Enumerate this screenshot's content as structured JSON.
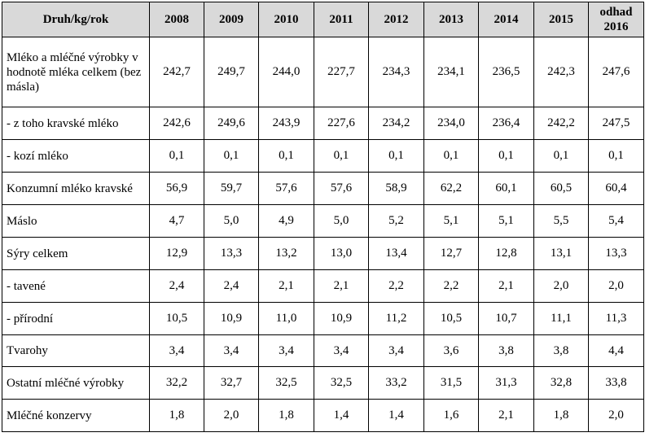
{
  "table": {
    "header_label": "Druh/kg/rok",
    "years": [
      "2008",
      "2009",
      "2010",
      "2011",
      "2012",
      "2013",
      "2014",
      "2015"
    ],
    "estimate_line1": "odhad",
    "estimate_line2": "2016",
    "rows": [
      {
        "label": "Mléko a mléčné výrobky v hodnotě mléka celkem (bez másla)",
        "values": [
          "242,7",
          "249,7",
          "244,0",
          "227,7",
          "234,3",
          "234,1",
          "236,5",
          "242,3",
          "247,6"
        ]
      },
      {
        "label": "- z toho kravské mléko",
        "values": [
          "242,6",
          "249,6",
          "243,9",
          "227,6",
          "234,2",
          "234,0",
          "236,4",
          "242,2",
          "247,5"
        ]
      },
      {
        "label": "- kozí mléko",
        "values": [
          "0,1",
          "0,1",
          "0,1",
          "0,1",
          "0,1",
          "0,1",
          "0,1",
          "0,1",
          "0,1"
        ]
      },
      {
        "label": "Konzumní mléko kravské",
        "values": [
          "56,9",
          "59,7",
          "57,6",
          "57,6",
          "58,9",
          "62,2",
          "60,1",
          "60,5",
          "60,4"
        ]
      },
      {
        "label": "Máslo",
        "values": [
          "4,7",
          "5,0",
          "4,9",
          "5,0",
          "5,2",
          "5,1",
          "5,1",
          "5,5",
          "5,4"
        ]
      },
      {
        "label": "Sýry celkem",
        "values": [
          "12,9",
          "13,3",
          "13,2",
          "13,0",
          "13,4",
          "12,7",
          "12,8",
          "13,1",
          "13,3"
        ]
      },
      {
        "label": "- tavené",
        "values": [
          "2,4",
          "2,4",
          "2,1",
          "2,1",
          "2,2",
          "2,2",
          "2,1",
          "2,0",
          "2,0"
        ]
      },
      {
        "label": "- přírodní",
        "values": [
          "10,5",
          "10,9",
          "11,0",
          "10,9",
          "11,2",
          "10,5",
          "10,7",
          "11,1",
          "11,3"
        ]
      },
      {
        "label": "Tvarohy",
        "values": [
          "3,4",
          "3,4",
          "3,4",
          "3,4",
          "3,4",
          "3,6",
          "3,8",
          "3,8",
          "4,4"
        ]
      },
      {
        "label": "Ostatní mléčné výrobky",
        "values": [
          "32,2",
          "32,7",
          "32,5",
          "32,5",
          "33,2",
          "31,5",
          "31,3",
          "32,8",
          "33,8"
        ]
      },
      {
        "label": "Mléčné konzervy",
        "values": [
          "1,8",
          "2,0",
          "1,8",
          "1,4",
          "1,4",
          "1,6",
          "2,1",
          "1,8",
          "2,0"
        ]
      }
    ]
  }
}
